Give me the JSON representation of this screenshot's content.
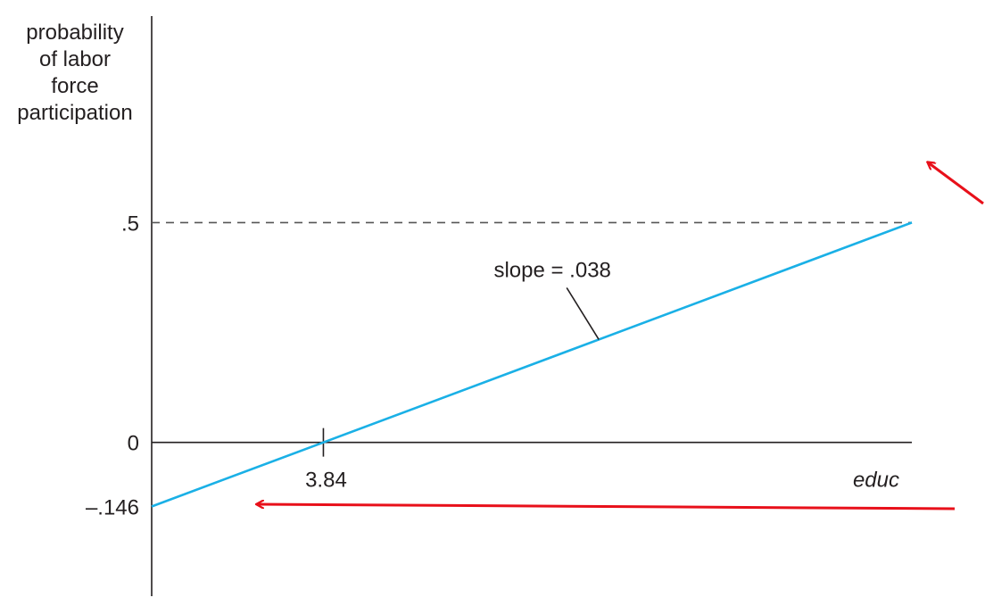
{
  "chart_data": {
    "type": "line",
    "ylabel_lines": [
      "probability",
      "of labor",
      "force",
      "participation"
    ],
    "xlabel": "educ",
    "series": [
      {
        "x": [
          0,
          3.84,
          17
        ],
        "y": [
          -0.146,
          0,
          0.5
        ]
      }
    ],
    "y_ticks": [
      {
        "value": 0.5,
        "label": ".5"
      },
      {
        "value": 0,
        "label": "0"
      },
      {
        "value": -0.146,
        "label": "–.146"
      }
    ],
    "x_ticks": [
      {
        "value": 3.84,
        "label": "3.84"
      }
    ],
    "reference_line": {
      "y": 0.5,
      "style": "dashed"
    },
    "annotation": {
      "text": "slope = .038",
      "points_to_x": 10
    },
    "xlim": [
      0,
      17
    ],
    "ylim": [
      -0.35,
      0.97
    ],
    "grid": false,
    "colors": {
      "line": "#1ab0e6",
      "axis": "#231f20",
      "dashed": "#555555",
      "arrows": "#e8101a"
    }
  }
}
